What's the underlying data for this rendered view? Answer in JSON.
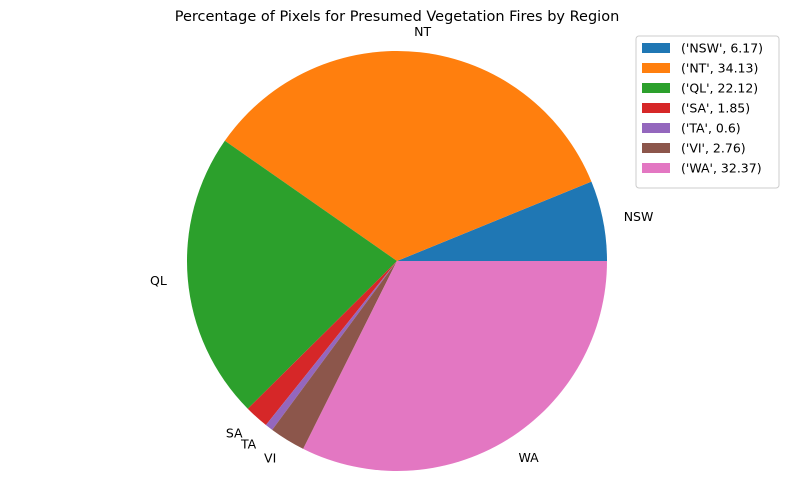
{
  "chart_data": {
    "type": "pie",
    "title": "Percentage of Pixels for Presumed Vegetation Fires by Region",
    "categories": [
      "NSW",
      "NT",
      "QL",
      "SA",
      "TA",
      "VI",
      "WA"
    ],
    "values": [
      6.17,
      34.13,
      22.12,
      1.85,
      0.6,
      2.76,
      32.37
    ],
    "colors": [
      "#1f77b4",
      "#ff7f0e",
      "#2ca02c",
      "#d62728",
      "#9467bd",
      "#8c564b",
      "#e377c2"
    ],
    "legend": {
      "position": "top-right",
      "entries": [
        "('NSW', 6.17)",
        "('NT', 34.13)",
        "('QL', 22.12)",
        "('SA', 1.85)",
        "('TA', 0.6)",
        "('VI', 2.76)",
        "('WA', 32.37)"
      ]
    }
  }
}
